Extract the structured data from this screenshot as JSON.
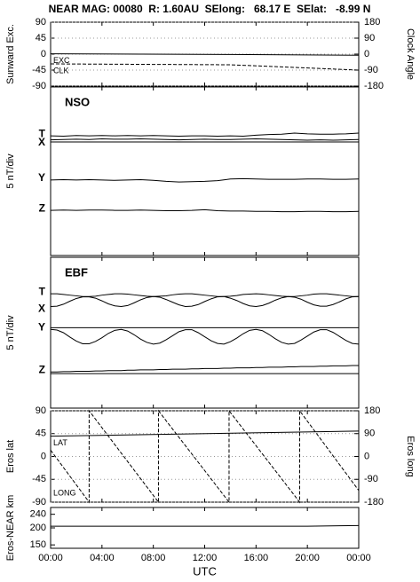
{
  "chart_data": [
    {
      "type": "line",
      "title": "NEAR MAG: 00080  R: 1.60AU  SElong:   68.17 E  SElat:   -8.99 N",
      "ylabel": "Sunward Exc.",
      "y2label": "Clock Angle",
      "xlim": [
        0,
        24
      ],
      "ylim": [
        -90,
        90
      ],
      "yticks": [
        90,
        45,
        0,
        -45,
        -90
      ],
      "y2lim": [
        -180,
        180
      ],
      "y2ticks": [
        180,
        90,
        0,
        -90,
        -180
      ],
      "grid": true,
      "series": [
        {
          "name": "EXC",
          "color": "#000000",
          "line_style": "solid",
          "x": [
            0,
            14,
            24
          ],
          "values": [
            1,
            -1,
            -3
          ]
        },
        {
          "name": "CLK",
          "color": "#000000",
          "line_style": "dashed",
          "axis": "y2",
          "x": [
            0,
            14,
            19,
            24
          ],
          "values": [
            -55,
            -60,
            -75,
            -90
          ]
        }
      ]
    },
    {
      "type": "line",
      "title": "NSO",
      "ylabel": "5 nT/div",
      "xlim": [
        0,
        24
      ],
      "ylim": [
        0,
        50
      ],
      "hlines": [
        33.7
      ],
      "x": [
        0,
        1,
        2,
        3,
        4,
        5,
        6,
        7,
        8,
        9,
        10,
        11,
        12,
        13,
        14,
        15,
        16,
        17,
        18,
        19,
        20,
        21,
        22,
        23,
        24
      ],
      "series": [
        {
          "name": "T",
          "color": "#000000",
          "values": [
            35.5,
            35.4,
            35.6,
            35.5,
            35.6,
            35.5,
            35.6,
            35.5,
            35.6,
            35.5,
            35.4,
            35.5,
            35.5,
            35.4,
            35.5,
            35.4,
            35.7,
            35.9,
            36.0,
            36.3,
            36.1,
            36.0,
            36.0,
            36.1,
            36.3
          ]
        },
        {
          "name": "X",
          "color": "#000000",
          "values": [
            34.3,
            34.4,
            34.5,
            34.4,
            34.6,
            34.5,
            34.5,
            34.6,
            34.5,
            34.4,
            34.3,
            34.4,
            34.5,
            34.4,
            34.4,
            34.5,
            34.6,
            34.5,
            34.4,
            34.3,
            34.2,
            34.3,
            34.2,
            34.3,
            34.4
          ]
        },
        {
          "name": "Y",
          "color": "#000000",
          "values": [
            22.4,
            22.5,
            22.4,
            22.5,
            22.4,
            22.3,
            22.4,
            22.5,
            22.3,
            22.0,
            21.8,
            21.9,
            22.0,
            22.2,
            22.7,
            22.8,
            22.7,
            22.6,
            22.6,
            22.6,
            22.7,
            22.7,
            22.6,
            22.6,
            22.7
          ]
        },
        {
          "name": "Z",
          "color": "#000000",
          "values": [
            13.4,
            13.5,
            13.4,
            13.5,
            13.5,
            13.4,
            13.4,
            13.5,
            13.4,
            13.3,
            13.3,
            13.4,
            13.6,
            13.3,
            13.2,
            13.2,
            13.1,
            13.1,
            13.0,
            13.0,
            13.1,
            13.1,
            13.0,
            13.0,
            13.1
          ]
        }
      ]
    },
    {
      "type": "line",
      "title": "EBF",
      "ylabel": "5 nT/div",
      "xlim": [
        0,
        24
      ],
      "ylim": [
        0,
        45
      ],
      "hlines": [
        24.0,
        10.3
      ],
      "x": [
        0,
        0.5,
        1,
        1.5,
        2,
        2.5,
        3,
        3.5,
        4,
        4.5,
        5,
        5.5,
        6,
        6.5,
        7,
        7.5,
        8,
        8.5,
        9,
        9.5,
        10,
        10.5,
        11,
        11.5,
        12,
        12.5,
        13,
        13.5,
        14,
        14.5,
        15,
        15.5,
        16,
        16.5,
        17,
        17.5,
        18,
        18.5,
        19,
        19.5,
        20,
        20.5,
        21,
        21.5,
        22,
        22.5,
        23,
        23.5,
        24
      ],
      "series": [
        {
          "name": "T",
          "color": "#000000",
          "values": [
            34.1,
            34.1,
            33.9,
            33.7,
            33.5,
            33.3,
            33.3,
            33.4,
            33.7,
            33.9,
            34.1,
            34.1,
            34.0,
            33.8,
            33.6,
            33.4,
            33.3,
            33.4,
            33.5,
            33.8,
            34.0,
            34.1,
            34.1,
            33.9,
            33.7,
            33.5,
            33.3,
            33.3,
            33.4,
            33.6,
            33.9,
            34.0,
            34.1,
            34.0,
            33.8,
            33.6,
            33.4,
            33.3,
            33.3,
            33.5,
            33.7,
            34.0,
            34.1,
            34.1,
            33.9,
            33.7,
            33.5,
            33.3,
            33.3
          ]
        },
        {
          "name": "X",
          "color": "#000000",
          "values": [
            30.3,
            30.4,
            31.0,
            31.9,
            32.7,
            33.2,
            33.2,
            32.8,
            32.0,
            31.1,
            30.5,
            30.3,
            30.6,
            31.4,
            32.3,
            33.0,
            33.3,
            33.1,
            32.4,
            31.6,
            30.8,
            30.3,
            30.4,
            30.9,
            31.8,
            32.6,
            33.2,
            33.3,
            32.8,
            32.1,
            31.2,
            30.5,
            30.3,
            30.6,
            31.3,
            32.2,
            32.9,
            33.3,
            33.1,
            32.5,
            31.6,
            30.8,
            30.4,
            30.4,
            30.9,
            31.7,
            32.6,
            33.2,
            33.3
          ]
        },
        {
          "name": "Y",
          "color": "#000000",
          "values": [
            23.5,
            23.3,
            22.5,
            21.2,
            20.0,
            19.2,
            19.2,
            19.9,
            21.0,
            22.3,
            23.2,
            23.5,
            23.0,
            21.9,
            20.6,
            19.6,
            19.1,
            19.4,
            20.4,
            21.6,
            22.8,
            23.4,
            23.4,
            22.5,
            21.3,
            20.1,
            19.3,
            19.1,
            19.8,
            20.9,
            22.2,
            23.2,
            23.5,
            23.1,
            22.0,
            20.7,
            19.6,
            19.1,
            19.3,
            20.3,
            21.5,
            22.7,
            23.4,
            23.4,
            22.6,
            21.4,
            20.2,
            19.3,
            19.1
          ]
        },
        {
          "name": "Z",
          "color": "#000000",
          "values": [
            10.8,
            10.8,
            10.9,
            10.9,
            11.0,
            11.0,
            11.0,
            11.1,
            11.1,
            11.2,
            11.2,
            11.2,
            11.3,
            11.3,
            11.4,
            11.4,
            11.4,
            11.5,
            11.5,
            11.6,
            11.6,
            11.6,
            11.7,
            11.7,
            11.8,
            11.8,
            11.8,
            11.9,
            11.9,
            12.0,
            12.0,
            12.0,
            12.1,
            12.1,
            12.2,
            12.2,
            12.2,
            12.3,
            12.3,
            12.4,
            12.4,
            12.4,
            12.5,
            12.5,
            12.6,
            12.6,
            12.6,
            12.7,
            12.7
          ]
        }
      ]
    },
    {
      "type": "line",
      "ylabel": "Eros lat",
      "y2label": "Eros long",
      "xlim": [
        0,
        24
      ],
      "ylim": [
        -90,
        90
      ],
      "yticks": [
        90,
        45,
        0,
        -45,
        -90
      ],
      "y2lim": [
        -180,
        180
      ],
      "y2ticks": [
        180,
        90,
        0,
        -90,
        -180
      ],
      "grid": true,
      "series": [
        {
          "name": "LAT",
          "color": "#000000",
          "line_style": "solid",
          "x": [
            0,
            24
          ],
          "values": [
            40,
            50
          ]
        },
        {
          "name": "LONG",
          "color": "#000000",
          "line_style": "dashed",
          "axis": "y2",
          "x": [
            0,
            3.0,
            3.0,
            8.4,
            8.4,
            13.9,
            13.9,
            19.4,
            19.4,
            24
          ],
          "values": [
            25,
            -180,
            180,
            -180,
            180,
            -180,
            180,
            -180,
            180,
            -134
          ]
        }
      ]
    },
    {
      "type": "line",
      "ylabel": "Eros-NEAR km",
      "xlabel": "UTC",
      "xlim": [
        0,
        24
      ],
      "ylim": [
        140,
        260
      ],
      "yticks": [
        240,
        200,
        150
      ],
      "xticks": [
        {
          "value": 0,
          "label": "00:00"
        },
        {
          "value": 4,
          "label": "04:00"
        },
        {
          "value": 8,
          "label": "08:00"
        },
        {
          "value": 12,
          "label": "12:00"
        },
        {
          "value": 16,
          "label": "16:00"
        },
        {
          "value": 20,
          "label": "20:00"
        },
        {
          "value": 24,
          "label": "00:00"
        }
      ],
      "series": [
        {
          "color": "#000000",
          "line_style": "solid",
          "x": [
            0,
            20,
            24
          ],
          "values": [
            205,
            205,
            207
          ]
        }
      ]
    }
  ]
}
